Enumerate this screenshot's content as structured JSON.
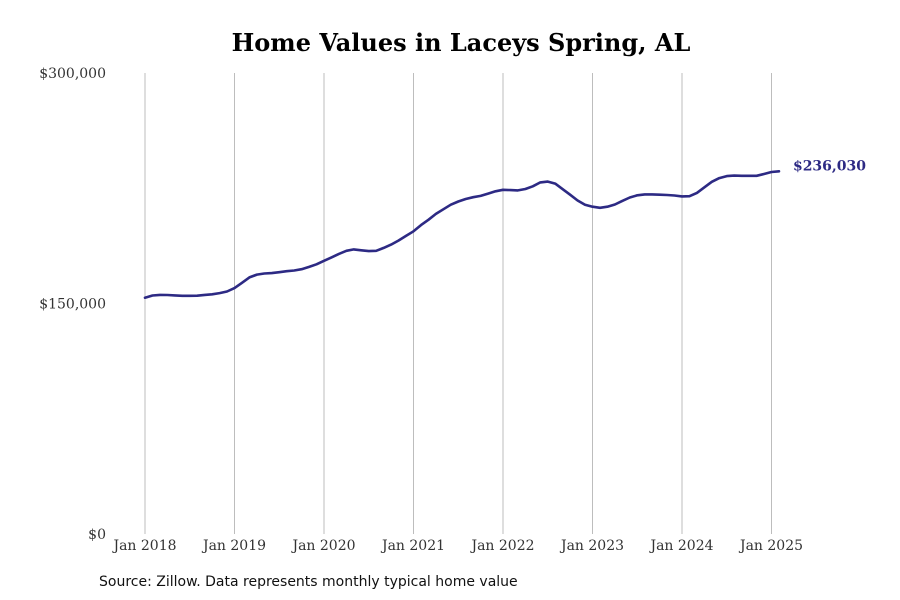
{
  "chart_data": {
    "type": "line",
    "title": "Home Values in Laceys Spring, AL",
    "xlabel": "",
    "ylabel": "",
    "x_ticks": [
      "Jan 2018",
      "Jan 2019",
      "Jan 2020",
      "Jan 2021",
      "Jan 2022",
      "Jan 2023",
      "Jan 2024",
      "Jan 2025"
    ],
    "y_ticks": [
      "$0",
      "$150,000",
      "$300,000"
    ],
    "y_tick_values": [
      0,
      150000,
      300000
    ],
    "ylim": [
      0,
      300000
    ],
    "xlim": [
      "2018-01",
      "2025-02"
    ],
    "grid": "vertical",
    "line_color": "#2d2a84",
    "end_label": "$236,030",
    "series": [
      {
        "points": [
          [
            "2018-01",
            153800
          ],
          [
            "2018-02",
            155200
          ],
          [
            "2018-03",
            155600
          ],
          [
            "2018-04",
            155500
          ],
          [
            "2018-05",
            155300
          ],
          [
            "2018-06",
            155000
          ],
          [
            "2018-07",
            155000
          ],
          [
            "2018-08",
            155100
          ],
          [
            "2018-09",
            155600
          ],
          [
            "2018-10",
            156000
          ],
          [
            "2018-11",
            156800
          ],
          [
            "2018-12",
            157800
          ],
          [
            "2019-01",
            160000
          ],
          [
            "2019-02",
            163500
          ],
          [
            "2019-03",
            167000
          ],
          [
            "2019-04",
            168800
          ],
          [
            "2019-05",
            169500
          ],
          [
            "2019-06",
            169800
          ],
          [
            "2019-07",
            170400
          ],
          [
            "2019-08",
            171000
          ],
          [
            "2019-09",
            171500
          ],
          [
            "2019-10",
            172300
          ],
          [
            "2019-11",
            173800
          ],
          [
            "2019-12",
            175500
          ],
          [
            "2020-01",
            177800
          ],
          [
            "2020-02",
            180000
          ],
          [
            "2020-03",
            182300
          ],
          [
            "2020-04",
            184300
          ],
          [
            "2020-05",
            185200
          ],
          [
            "2020-06",
            184600
          ],
          [
            "2020-07",
            184100
          ],
          [
            "2020-08",
            184300
          ],
          [
            "2020-09",
            186200
          ],
          [
            "2020-10",
            188300
          ],
          [
            "2020-11",
            191000
          ],
          [
            "2020-12",
            194000
          ],
          [
            "2021-01",
            197000
          ],
          [
            "2021-02",
            201000
          ],
          [
            "2021-03",
            204500
          ],
          [
            "2021-04",
            208300
          ],
          [
            "2021-05",
            211300
          ],
          [
            "2021-06",
            214300
          ],
          [
            "2021-07",
            216400
          ],
          [
            "2021-08",
            218000
          ],
          [
            "2021-09",
            219200
          ],
          [
            "2021-10",
            220000
          ],
          [
            "2021-11",
            221500
          ],
          [
            "2021-12",
            223000
          ],
          [
            "2022-01",
            224000
          ],
          [
            "2022-02",
            223800
          ],
          [
            "2022-03",
            223600
          ],
          [
            "2022-04",
            224500
          ],
          [
            "2022-05",
            226300
          ],
          [
            "2022-06",
            228800
          ],
          [
            "2022-07",
            229300
          ],
          [
            "2022-08",
            228000
          ],
          [
            "2022-09",
            224400
          ],
          [
            "2022-10",
            220800
          ],
          [
            "2022-11",
            217000
          ],
          [
            "2022-12",
            214300
          ],
          [
            "2023-01",
            213000
          ],
          [
            "2023-02",
            212300
          ],
          [
            "2023-03",
            213000
          ],
          [
            "2023-04",
            214400
          ],
          [
            "2023-05",
            216800
          ],
          [
            "2023-06",
            219000
          ],
          [
            "2023-07",
            220400
          ],
          [
            "2023-08",
            221000
          ],
          [
            "2023-09",
            221000
          ],
          [
            "2023-10",
            220800
          ],
          [
            "2023-11",
            220600
          ],
          [
            "2023-12",
            220300
          ],
          [
            "2024-01",
            219700
          ],
          [
            "2024-02",
            219800
          ],
          [
            "2024-03",
            222000
          ],
          [
            "2024-04",
            225600
          ],
          [
            "2024-05",
            229200
          ],
          [
            "2024-06",
            231600
          ],
          [
            "2024-07",
            232900
          ],
          [
            "2024-08",
            233200
          ],
          [
            "2024-09",
            233100
          ],
          [
            "2024-10",
            233100
          ],
          [
            "2024-11",
            233100
          ],
          [
            "2024-12",
            234300
          ],
          [
            "2025-01",
            235600
          ],
          [
            "2025-02",
            236030
          ]
        ]
      }
    ]
  },
  "source_text": "Source: Zillow. Data represents monthly typical home value"
}
